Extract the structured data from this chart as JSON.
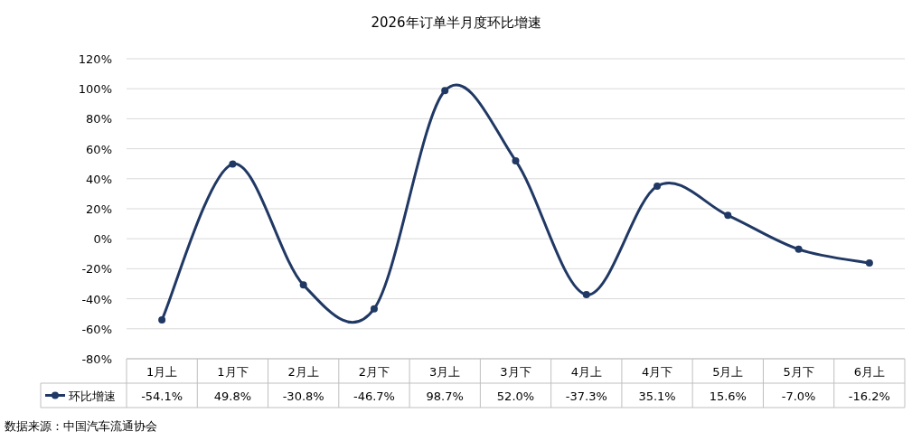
{
  "chart_data": {
    "type": "line",
    "title": "2026年订单半月度环比增速",
    "categories": [
      "1月上",
      "1月下",
      "2月上",
      "2月下",
      "3月上",
      "3月下",
      "4月上",
      "4月下",
      "5月上",
      "5月下",
      "6月上"
    ],
    "series": [
      {
        "name": "环比增速",
        "color": "#203864",
        "values": [
          -54.1,
          49.8,
          -30.8,
          -46.7,
          98.7,
          52.0,
          -37.3,
          35.1,
          15.6,
          -7.0,
          -16.2
        ],
        "value_labels": [
          "-54.1%",
          "49.8%",
          "-30.8%",
          "-46.7%",
          "98.7%",
          "52.0%",
          "-37.3%",
          "35.1%",
          "15.6%",
          "-7.0%",
          "-16.2%"
        ]
      }
    ],
    "ylim": [
      -80,
      120
    ],
    "yticks": [
      {
        "value": -80,
        "label": "-80%"
      },
      {
        "value": -60,
        "label": "-60%"
      },
      {
        "value": -40,
        "label": "-40%"
      },
      {
        "value": -20,
        "label": "-20%"
      },
      {
        "value": 0,
        "label": "0%"
      },
      {
        "value": 20,
        "label": "20%"
      },
      {
        "value": 40,
        "label": "40%"
      },
      {
        "value": 60,
        "label": "60%"
      },
      {
        "value": 80,
        "label": "80%"
      },
      {
        "value": 100,
        "label": "100%"
      },
      {
        "value": 120,
        "label": "120%"
      }
    ],
    "grid": "y",
    "marker": "circle",
    "line_style": "solid",
    "legend": "bottom",
    "annotations": [
      "数据来源：中国汽车流通协会"
    ]
  }
}
